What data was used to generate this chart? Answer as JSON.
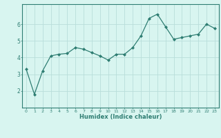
{
  "x": [
    0,
    1,
    2,
    3,
    4,
    5,
    6,
    7,
    8,
    9,
    10,
    11,
    12,
    13,
    14,
    15,
    16,
    17,
    18,
    19,
    20,
    21,
    22,
    23
  ],
  "y": [
    3.3,
    1.8,
    3.2,
    4.1,
    4.2,
    4.25,
    4.6,
    4.5,
    4.3,
    4.1,
    3.85,
    4.2,
    4.2,
    4.6,
    5.3,
    6.35,
    6.6,
    5.85,
    5.1,
    5.2,
    5.3,
    5.4,
    6.0,
    5.75
  ],
  "xlabel": "Humidex (Indice chaleur)",
  "line_color": "#2e7d72",
  "marker": "D",
  "marker_size": 2,
  "bg_color": "#d8f5f0",
  "grid_color": "#b8deda",
  "axis_color": "#2e7d72",
  "tick_color": "#2e7d72",
  "label_color": "#2e7d72",
  "xlim": [
    -0.5,
    23.5
  ],
  "ylim": [
    1.0,
    7.2
  ],
  "yticks": [
    2,
    3,
    4,
    5,
    6
  ],
  "xticks": [
    0,
    1,
    2,
    3,
    4,
    5,
    6,
    7,
    8,
    9,
    10,
    11,
    12,
    13,
    14,
    15,
    16,
    17,
    18,
    19,
    20,
    21,
    22,
    23
  ]
}
